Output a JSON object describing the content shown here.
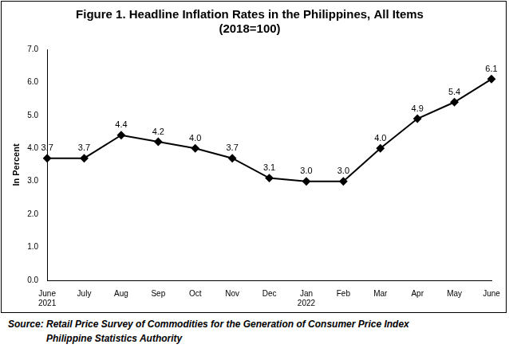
{
  "chart_data": {
    "type": "line",
    "title": "Figure 1. Headline Inflation Rates in the Philippines, All Items",
    "subtitle": "(2018=100)",
    "y_label": "In Percent",
    "source": [
      "Source: Retail Price Survey of Commodities for the Generation of Consumer Price Index",
      "Philippine Statistics Authority"
    ],
    "categories": [
      "June 2021",
      "July",
      "Aug",
      "Sep",
      "Oct",
      "Nov",
      "Dec",
      "Jan 2022",
      "Feb",
      "Mar",
      "Apr",
      "May",
      "June"
    ],
    "values": [
      3.7,
      3.7,
      4.4,
      4.2,
      4.0,
      3.7,
      3.1,
      3.0,
      3.0,
      4.0,
      4.9,
      5.4,
      6.1
    ],
    "value_labels": [
      "3.7",
      "3.7",
      "4.4",
      "4.2",
      "4.0",
      "3.7",
      "3.1",
      "3.0",
      "3.0",
      "4.0",
      "4.9",
      "5.4",
      "6.1"
    ],
    "data_labels": true,
    "color": "#000000",
    "marker": "diamond",
    "line_style": "solid",
    "ylim": [
      0,
      7
    ],
    "yticks": [
      {
        "value": 0,
        "label": "0.0"
      },
      {
        "value": 1,
        "label": "1.0"
      },
      {
        "value": 2,
        "label": "2.0"
      },
      {
        "value": 3,
        "label": "3.0"
      },
      {
        "value": 4,
        "label": "4.0"
      },
      {
        "value": 5,
        "label": "5.0"
      },
      {
        "value": 6,
        "label": "6.0"
      },
      {
        "value": 7,
        "label": "7.0"
      }
    ],
    "grid": false,
    "legend": false
  }
}
